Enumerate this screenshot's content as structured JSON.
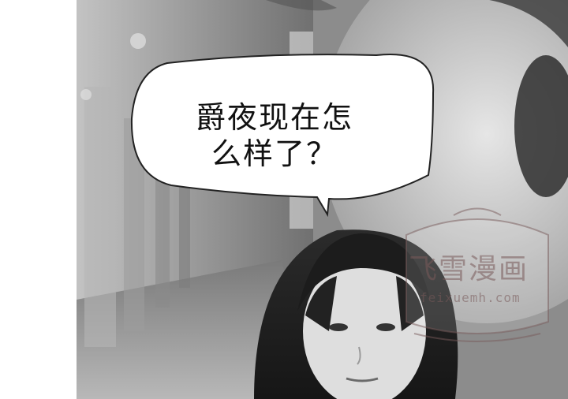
{
  "speech_bubble": {
    "line1": "爵夜现在怎",
    "line2": "么样了？"
  },
  "watermark": {
    "title": "飞雪漫画",
    "url": "feixuemh.com"
  },
  "colors": {
    "bubble_fill": "#ffffff",
    "bubble_stroke": "#222222",
    "scene_tone": "grayscale"
  }
}
